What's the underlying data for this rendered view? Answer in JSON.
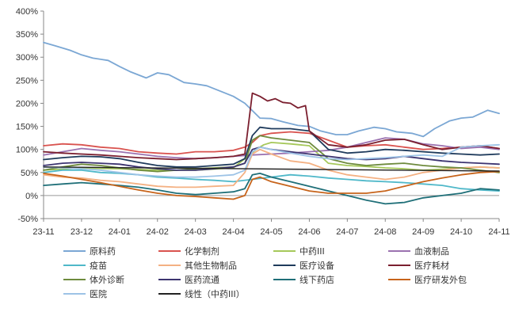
{
  "chart_data": {
    "type": "line",
    "title": "",
    "xlabel": "",
    "ylabel": "",
    "ylim": [
      -0.5,
      4.0
    ],
    "y_tick_labels": [
      "400%",
      "350%",
      "300%",
      "250%",
      "200%",
      "150%",
      "100%",
      "50%",
      "0%",
      "-50%"
    ],
    "x_tick_labels": [
      "23-11",
      "23-12",
      "24-01",
      "24-02",
      "24-03",
      "24-04",
      "24-05",
      "24-06",
      "24-07",
      "24-08",
      "24-09",
      "24-10",
      "24-11"
    ],
    "grid": false,
    "legend_position": "bottom",
    "series": [
      {
        "name": "原料药",
        "color": "#7BA7D4",
        "x": [
          0,
          0.3,
          0.7,
          1.0,
          1.3,
          1.7,
          2.0,
          2.3,
          2.7,
          3.0,
          3.3,
          3.7,
          4.0,
          4.3,
          4.7,
          5.0,
          5.3,
          5.7,
          6.0,
          6.3,
          6.7,
          7.0,
          7.3,
          7.7,
          8.0,
          8.3,
          8.7,
          9.0,
          9.3,
          9.7,
          10.0,
          10.3,
          10.7,
          11.0,
          11.3,
          11.7,
          12.0
        ],
        "values": [
          3.32,
          3.25,
          3.15,
          3.05,
          2.98,
          2.93,
          2.8,
          2.68,
          2.55,
          2.66,
          2.62,
          2.45,
          2.42,
          2.38,
          2.25,
          2.15,
          2.0,
          1.68,
          1.67,
          1.6,
          1.52,
          1.5,
          1.4,
          1.32,
          1.32,
          1.4,
          1.48,
          1.45,
          1.38,
          1.35,
          1.28,
          1.45,
          1.62,
          1.68,
          1.7,
          1.85,
          1.78
        ]
      },
      {
        "name": "化学制剂",
        "color": "#D9534F",
        "x": [
          0,
          0.5,
          1.0,
          1.5,
          2.0,
          2.5,
          3.0,
          3.5,
          4.0,
          4.5,
          5.0,
          5.3,
          5.5,
          5.7,
          6.0,
          6.5,
          7.0,
          7.5,
          8.0,
          8.5,
          9.0,
          9.5,
          10.0,
          10.5,
          11.0,
          11.5,
          12.0
        ],
        "values": [
          1.08,
          1.12,
          1.1,
          1.05,
          1.02,
          0.95,
          0.92,
          0.9,
          0.95,
          0.95,
          0.98,
          1.05,
          1.15,
          1.3,
          1.35,
          1.38,
          1.35,
          1.2,
          1.05,
          1.08,
          1.1,
          1.05,
          1.0,
          1.02,
          1.05,
          1.08,
          1.02
        ]
      },
      {
        "name": "中药III",
        "color": "#A6C85A",
        "x": [
          0,
          1,
          2,
          3,
          4,
          5,
          5.3,
          5.6,
          5.8,
          6,
          6.5,
          7,
          7.5,
          8,
          8.5,
          9,
          9.5,
          10,
          10.5,
          11,
          11.5,
          12
        ],
        "values": [
          0.55,
          0.6,
          0.58,
          0.55,
          0.55,
          0.6,
          0.8,
          1.0,
          1.1,
          1.15,
          1.12,
          1.08,
          0.7,
          0.65,
          0.63,
          0.6,
          0.58,
          0.55,
          0.57,
          0.6,
          0.62,
          0.6
        ]
      },
      {
        "name": "血液制品",
        "color": "#9B72B0",
        "x": [
          0,
          0.5,
          1,
          1.5,
          2,
          2.5,
          3,
          3.5,
          4,
          4.5,
          5,
          5.5,
          6,
          6.5,
          7,
          7.5,
          8,
          8.5,
          9,
          9.5,
          10,
          10.5,
          11,
          11.5,
          12
        ],
        "values": [
          0.88,
          0.95,
          1.02,
          0.98,
          0.95,
          0.9,
          0.85,
          0.82,
          0.8,
          0.82,
          0.85,
          0.88,
          0.9,
          0.92,
          0.95,
          0.98,
          1.05,
          1.15,
          1.25,
          1.22,
          1.12,
          1.08,
          1.02,
          1.05,
          1.0
        ]
      },
      {
        "name": "疫苗",
        "color": "#4FB8C9",
        "x": [
          0,
          0.5,
          1,
          1.5,
          2,
          2.5,
          3,
          3.5,
          4,
          4.5,
          5,
          5.5,
          6,
          6.5,
          7,
          7.5,
          8,
          8.5,
          9,
          9.5,
          10,
          10.5,
          11,
          11.5,
          12
        ],
        "values": [
          0.5,
          0.55,
          0.55,
          0.5,
          0.48,
          0.45,
          0.4,
          0.38,
          0.35,
          0.33,
          0.3,
          0.35,
          0.4,
          0.45,
          0.42,
          0.38,
          0.35,
          0.32,
          0.3,
          0.28,
          0.25,
          0.22,
          0.15,
          0.12,
          0.1
        ]
      },
      {
        "name": "其他生物制品",
        "color": "#F4B183",
        "x": [
          0,
          0.5,
          1,
          1.5,
          2,
          2.5,
          3,
          3.5,
          4,
          4.5,
          5,
          5.3,
          5.5,
          5.7,
          6,
          6.5,
          7,
          7.5,
          8,
          8.5,
          9,
          9.5,
          10,
          10.5,
          11,
          11.5,
          12
        ],
        "values": [
          0.45,
          0.4,
          0.38,
          0.33,
          0.3,
          0.25,
          0.2,
          0.18,
          0.18,
          0.2,
          0.22,
          0.5,
          0.9,
          1.0,
          0.9,
          0.75,
          0.7,
          0.55,
          0.45,
          0.4,
          0.35,
          0.4,
          0.5,
          0.55,
          0.6,
          0.62,
          0.6
        ]
      },
      {
        "name": "医疗设备",
        "color": "#1F3B5C",
        "x": [
          0,
          0.5,
          1,
          1.5,
          2,
          2.5,
          3,
          3.5,
          4,
          4.5,
          5,
          5.3,
          5.5,
          5.7,
          6,
          6.5,
          7,
          7.5,
          8,
          8.5,
          9,
          9.5,
          10,
          10.5,
          11,
          11.5,
          12
        ],
        "values": [
          0.78,
          0.82,
          0.85,
          0.84,
          0.8,
          0.72,
          0.65,
          0.62,
          0.62,
          0.65,
          0.68,
          0.8,
          1.3,
          1.48,
          1.45,
          1.45,
          1.4,
          1.0,
          0.92,
          0.95,
          1.0,
          0.98,
          0.95,
          0.92,
          0.9,
          0.88,
          0.9
        ]
      },
      {
        "name": "医疗耗材",
        "color": "#7B1F2F",
        "x": [
          0,
          0.5,
          1,
          1.5,
          2,
          2.5,
          3,
          3.5,
          4,
          4.5,
          5,
          5.3,
          5.5,
          5.7,
          5.9,
          6.1,
          6.3,
          6.5,
          6.7,
          6.9,
          7,
          7.5,
          8,
          8.5,
          9,
          9.5,
          10,
          10.5,
          11,
          11.5,
          12
        ],
        "values": [
          0.95,
          0.92,
          0.9,
          0.88,
          0.85,
          0.82,
          0.8,
          0.78,
          0.8,
          0.82,
          0.85,
          0.9,
          2.22,
          2.15,
          2.05,
          2.1,
          2.02,
          2.0,
          1.9,
          1.95,
          1.4,
          1.1,
          1.05,
          1.1,
          1.2,
          1.22,
          1.1,
          1.0,
          1.05,
          1.08,
          1.02
        ]
      },
      {
        "name": "体外诊断",
        "color": "#6E8B3D",
        "x": [
          0,
          0.5,
          1,
          1.5,
          2,
          2.5,
          3,
          3.5,
          4,
          4.5,
          5,
          5.3,
          5.5,
          5.7,
          6,
          6.5,
          7,
          7.5,
          8,
          8.5,
          9,
          9.5,
          10,
          10.5,
          11,
          11.5,
          12
        ],
        "values": [
          0.55,
          0.62,
          0.68,
          0.65,
          0.6,
          0.55,
          0.52,
          0.55,
          0.58,
          0.6,
          0.62,
          0.7,
          1.2,
          1.3,
          1.25,
          1.2,
          1.15,
          0.8,
          0.7,
          0.65,
          0.68,
          0.7,
          0.65,
          0.62,
          0.6,
          0.55,
          0.5
        ]
      },
      {
        "name": "医药流通",
        "color": "#3C3470",
        "x": [
          0,
          0.5,
          1,
          1.5,
          2,
          2.5,
          3,
          3.5,
          4,
          4.5,
          5,
          5.3,
          5.5,
          5.7,
          6,
          6.5,
          7,
          7.5,
          8,
          8.5,
          9,
          9.5,
          10,
          10.5,
          11,
          11.5,
          12
        ],
        "values": [
          0.65,
          0.7,
          0.72,
          0.7,
          0.68,
          0.62,
          0.58,
          0.55,
          0.55,
          0.58,
          0.62,
          0.7,
          1.0,
          1.05,
          1.0,
          0.95,
          0.9,
          0.85,
          0.8,
          0.78,
          0.8,
          0.85,
          0.8,
          0.75,
          0.72,
          0.7,
          0.68
        ]
      },
      {
        "name": "线下药店",
        "color": "#1F6F78",
        "x": [
          0,
          0.5,
          1,
          1.5,
          2,
          2.5,
          3,
          3.5,
          4,
          4.5,
          5,
          5.3,
          5.5,
          5.7,
          6,
          6.5,
          7,
          7.5,
          8,
          8.5,
          9,
          9.5,
          10,
          10.5,
          11,
          11.5,
          12
        ],
        "values": [
          0.22,
          0.25,
          0.28,
          0.25,
          0.22,
          0.18,
          0.12,
          0.05,
          0.02,
          0.05,
          0.08,
          0.15,
          0.45,
          0.48,
          0.4,
          0.3,
          0.2,
          0.1,
          0.0,
          -0.1,
          -0.18,
          -0.15,
          -0.05,
          0.0,
          0.05,
          0.15,
          0.12
        ]
      },
      {
        "name": "医疗研发外包",
        "color": "#C7641B",
        "x": [
          0,
          0.5,
          1,
          1.5,
          2,
          2.5,
          3,
          3.5,
          4,
          4.5,
          5,
          5.3,
          5.5,
          5.7,
          6,
          6.5,
          7,
          7.5,
          8,
          8.5,
          9,
          9.5,
          10,
          10.5,
          11,
          11.5,
          12
        ],
        "values": [
          0.48,
          0.42,
          0.35,
          0.28,
          0.2,
          0.12,
          0.05,
          0.0,
          -0.02,
          -0.05,
          -0.08,
          0.0,
          0.35,
          0.4,
          0.3,
          0.2,
          0.1,
          0.05,
          0.05,
          0.05,
          0.1,
          0.2,
          0.3,
          0.38,
          0.45,
          0.5,
          0.52
        ]
      },
      {
        "name": "医院",
        "color": "#9DC3E6",
        "x": [
          0,
          0.5,
          1,
          1.5,
          2,
          2.5,
          3,
          3.5,
          4,
          4.5,
          5,
          5.3,
          5.5,
          5.7,
          6,
          6.5,
          7,
          7.5,
          8,
          8.5,
          9,
          9.5,
          10,
          10.5,
          11,
          11.5,
          12
        ],
        "values": [
          0.62,
          0.6,
          0.58,
          0.55,
          0.5,
          0.45,
          0.42,
          0.4,
          0.4,
          0.42,
          0.45,
          0.55,
          0.95,
          1.05,
          1.0,
          0.92,
          0.85,
          0.8,
          0.78,
          0.8,
          0.82,
          0.85,
          0.88,
          0.85,
          1.05,
          1.08,
          1.1
        ]
      },
      {
        "name": "线性（中药III）",
        "color": "#222222",
        "x": [
          0,
          12
        ],
        "values": [
          0.62,
          0.53
        ]
      }
    ]
  }
}
